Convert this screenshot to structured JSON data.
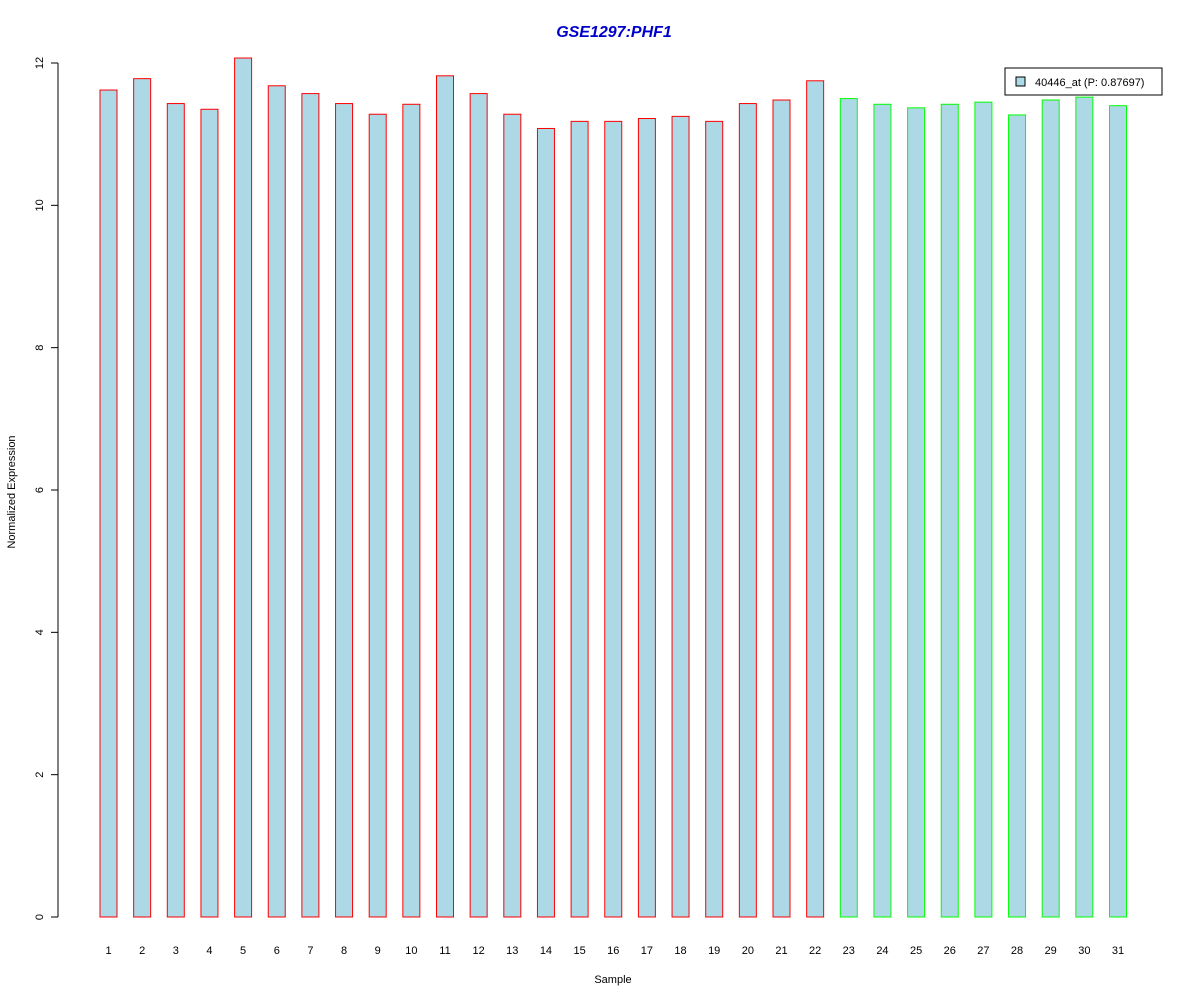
{
  "chart_data": {
    "type": "bar",
    "title": "GSE1297:PHF1",
    "xlabel": "Sample",
    "ylabel": "Normalized Expression",
    "ylim": [
      0,
      12
    ],
    "y_ticks": [
      "0",
      "2",
      "4",
      "6",
      "8",
      "10",
      "12"
    ],
    "categories": [
      "1",
      "2",
      "3",
      "4",
      "5",
      "6",
      "7",
      "8",
      "9",
      "10",
      "11",
      "12",
      "13",
      "14",
      "15",
      "16",
      "17",
      "18",
      "19",
      "20",
      "21",
      "22",
      "23",
      "24",
      "25",
      "26",
      "27",
      "28",
      "29",
      "30",
      "31"
    ],
    "series": [
      {
        "name": "40446_at (P: 0.87697)",
        "values": [
          11.62,
          11.78,
          11.43,
          11.35,
          12.07,
          11.68,
          11.57,
          11.43,
          11.28,
          11.42,
          11.82,
          11.57,
          11.28,
          11.08,
          11.18,
          11.18,
          11.22,
          11.25,
          11.18,
          11.43,
          11.48,
          11.75,
          11.5,
          11.42,
          11.37,
          11.42,
          11.45,
          11.27,
          11.48,
          11.52,
          11.4
        ],
        "fill_color": "#ADD8E6",
        "border_colors": [
          "#FF0000",
          "#FF0000",
          "#FF0000",
          "#FF0000",
          "#FF0000",
          "#FF0000",
          "#FF0000",
          "#FF0000",
          "#FF0000",
          "#FF0000",
          "#FF0000",
          "#FF0000",
          "#FF0000",
          "#FF0000",
          "#FF0000",
          "#FF0000",
          "#FF0000",
          "#FF0000",
          "#FF0000",
          "#FF0000",
          "#FF0000",
          "#FF0000",
          "#00FF00",
          "#00FF00",
          "#00FF00",
          "#00FF00",
          "#00FF00",
          "#00FF00",
          "#00FF00",
          "#00FF00",
          "#00FF00"
        ]
      }
    ],
    "legend_position": "top-right",
    "title_color": "#0000CC",
    "grid": false
  }
}
